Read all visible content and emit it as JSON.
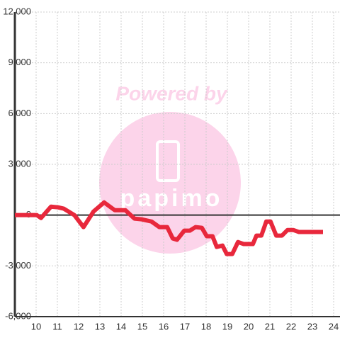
{
  "chart_data": {
    "type": "line",
    "watermark": "Powered by",
    "logo": "papimo",
    "x": [
      9.0,
      9.63,
      10.03,
      10.23,
      10.7,
      11.03,
      11.3,
      11.8,
      12.23,
      12.7,
      13.2,
      13.7,
      14.2,
      14.63,
      14.97,
      15.43,
      15.8,
      16.17,
      16.43,
      16.63,
      16.97,
      17.23,
      17.5,
      17.8,
      18.03,
      18.3,
      18.5,
      18.77,
      18.97,
      19.23,
      19.5,
      19.77,
      20.2,
      20.37,
      20.6,
      20.83,
      21.03,
      21.3,
      21.57,
      21.83,
      22.1,
      22.37,
      23.5
    ],
    "series": [
      {
        "color": "#e8283c",
        "values": [
          0,
          0,
          0,
          -170,
          500,
          460,
          380,
          0,
          -710,
          210,
          750,
          290,
          290,
          -210,
          -250,
          -380,
          -710,
          -710,
          -1380,
          -1460,
          -920,
          -920,
          -710,
          -750,
          -1250,
          -1250,
          -1880,
          -1800,
          -2300,
          -2300,
          -1590,
          -1710,
          -1710,
          -1210,
          -1210,
          -380,
          -380,
          -1210,
          -1210,
          -880,
          -880,
          -1000,
          -1000
        ]
      }
    ],
    "xlim": [
      9,
      24.3
    ],
    "xticks": [
      10,
      11,
      12,
      13,
      14,
      15,
      16,
      17,
      18,
      19,
      20,
      21,
      22,
      23,
      24
    ],
    "ylim": [
      -6000,
      12000
    ],
    "yticks": [
      {
        "value": -6000,
        "label": "-6,000"
      },
      {
        "value": -3000,
        "label": "-3,000"
      },
      0,
      {
        "value": 3000,
        "label": "3,000"
      },
      {
        "value": 6000,
        "label": "6,000"
      },
      {
        "value": 9000,
        "label": "9,000"
      },
      {
        "value": 12000,
        "label": "12,000"
      }
    ],
    "grid": true
  }
}
